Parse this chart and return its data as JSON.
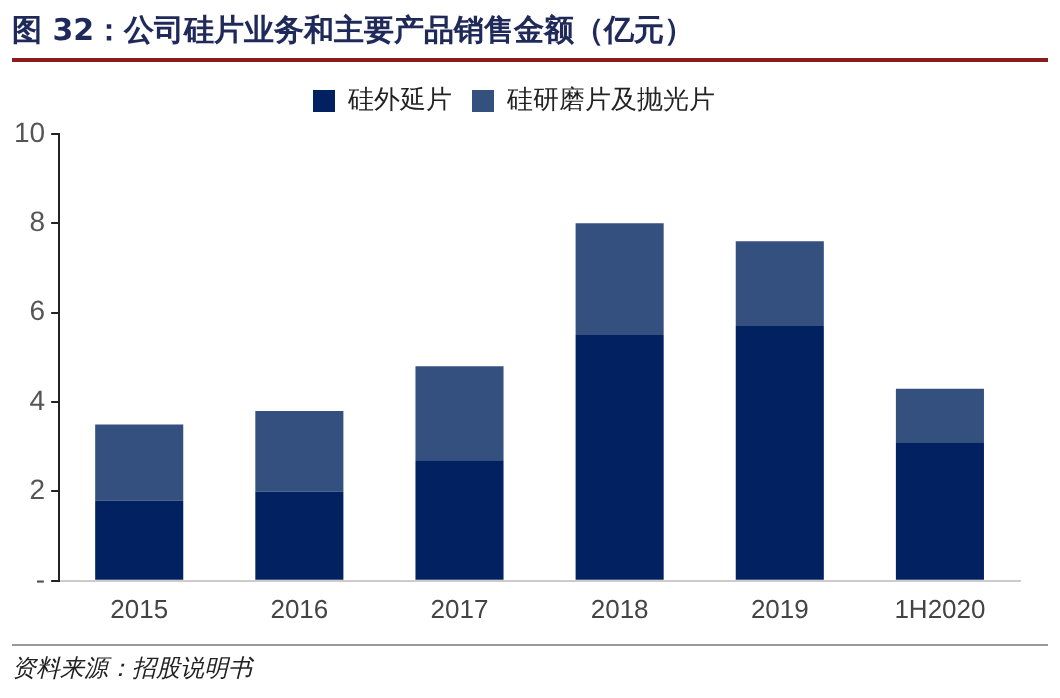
{
  "chart_data": {
    "type": "bar",
    "title": "图 32：公司硅片业务和主要产品销售金额（亿元）",
    "categories": [
      "2015",
      "2016",
      "2017",
      "2018",
      "2019",
      "1H2020"
    ],
    "series": [
      {
        "name": "硅外延片",
        "color": "#022160",
        "values": [
          1.8,
          2.0,
          2.7,
          5.5,
          5.7,
          3.1
        ]
      },
      {
        "name": "硅研磨片及抛光片",
        "color": "#34507e",
        "values": [
          1.7,
          1.8,
          2.1,
          2.5,
          1.9,
          1.2
        ]
      }
    ],
    "stacked": true,
    "ylim": [
      0,
      10
    ],
    "yticks": [
      {
        "value": 0,
        "label": "-"
      },
      2,
      4,
      6,
      8,
      10
    ],
    "grid": false,
    "legend": "top",
    "annotations": [
      "资料来源：招股说明书"
    ]
  }
}
